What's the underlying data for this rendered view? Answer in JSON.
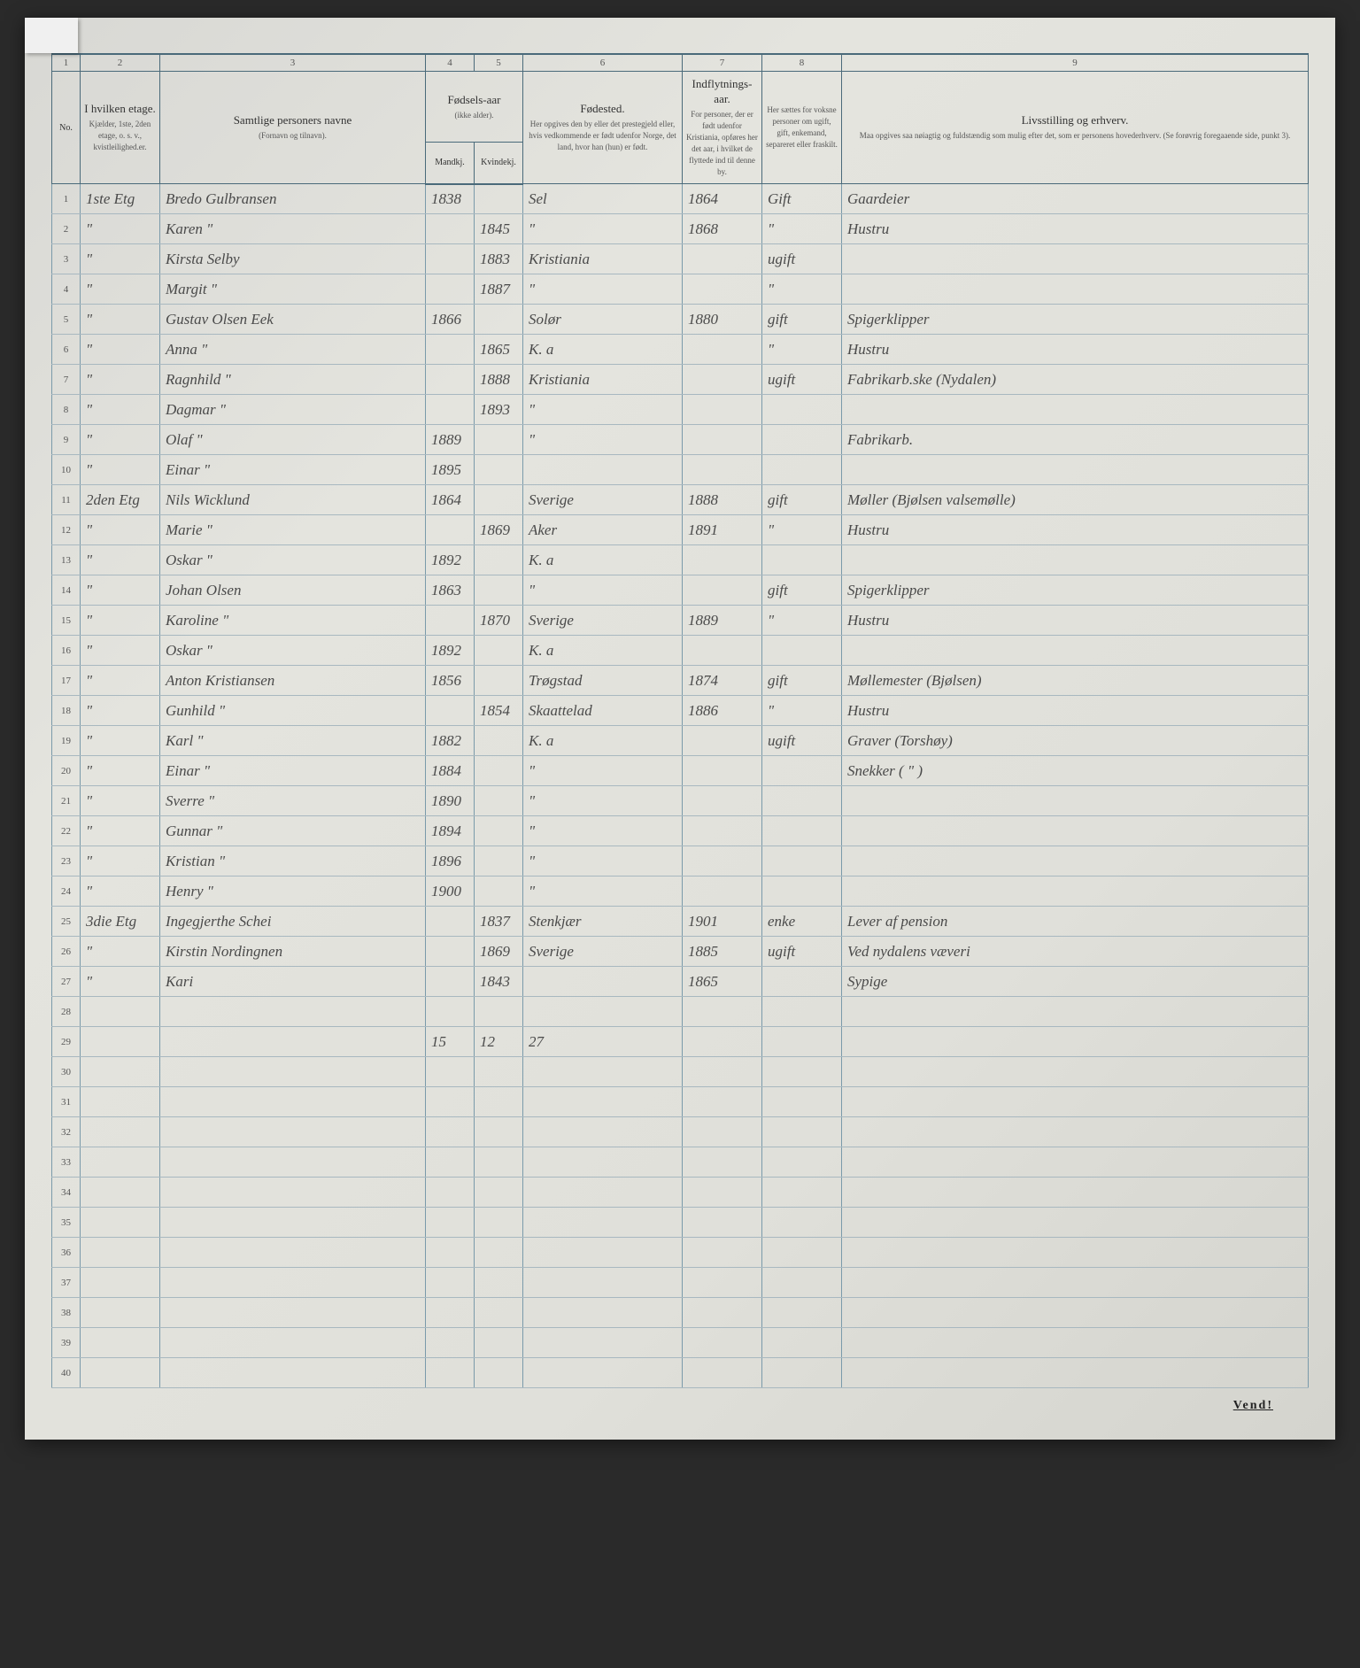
{
  "columns": {
    "numbers": [
      "1",
      "2",
      "3",
      "4",
      "5",
      "6",
      "7",
      "8",
      "9"
    ],
    "headers": {
      "no": "No.",
      "etage": {
        "main": "I hvilken etage.",
        "sub": "Kjælder, 1ste, 2den etage, o. s. v., kvistleilighed.er."
      },
      "name": {
        "main": "Samtlige personers navne",
        "sub": "(Fornavn og tilnavn)."
      },
      "birth": {
        "main": "Fødsels-aar",
        "sub": "(ikke alder).",
        "m": "Mandkj.",
        "f": "Kvindekj."
      },
      "place": {
        "main": "Fødested.",
        "sub": "Her opgives den by eller det prestegjeld eller, hvis vedkommende er født udenfor Norge, det land, hvor han (hun) er født."
      },
      "move": {
        "main": "Indflytnings-aar.",
        "sub": "For personer, der er født udenfor Kristiania, opføres her det aar, i hvilket de flyttede ind til denne by."
      },
      "status": {
        "main": "",
        "sub": "Her sættes for voksne personer om ugift, gift, enkemand, separeret eller fraskilt."
      },
      "occ": {
        "main": "Livsstilling og erhverv.",
        "sub": "Maa opgives saa nøiagtig og fuldstændig som mulig efter det, som er personens hovederhverv. (Se forøvrig foregaaende side, punkt 3)."
      }
    }
  },
  "rows": [
    {
      "n": "1",
      "et": "1ste Etg",
      "name": "Bredo Gulbransen",
      "ym": "1838",
      "yf": "",
      "place": "Sel",
      "move": "1864",
      "st": "Gift",
      "occ": "Gaardeier"
    },
    {
      "n": "2",
      "et": "\"",
      "name": "Karen        \"",
      "ym": "",
      "yf": "1845",
      "place": "\"",
      "move": "1868",
      "st": "\"",
      "occ": "Hustru"
    },
    {
      "n": "3",
      "et": "\"",
      "name": "Kirsta   Selby",
      "ym": "",
      "yf": "1883",
      "place": "Kristiania",
      "move": "",
      "st": "ugift",
      "occ": ""
    },
    {
      "n": "4",
      "et": "\"",
      "name": "Margit      \"",
      "ym": "",
      "yf": "1887",
      "place": "\"",
      "move": "",
      "st": "\"",
      "occ": ""
    },
    {
      "n": "5",
      "et": "\"",
      "name": "Gustav Olsen Eek",
      "ym": "1866",
      "yf": "",
      "place": "Solør",
      "move": "1880",
      "st": "gift",
      "occ": "Spigerklipper"
    },
    {
      "n": "6",
      "et": "\"",
      "name": "Anna         \"",
      "ym": "",
      "yf": "1865",
      "place": "K. a",
      "move": "",
      "st": "\"",
      "occ": "Hustru"
    },
    {
      "n": "7",
      "et": "\"",
      "name": "Ragnhild     \"",
      "ym": "",
      "yf": "1888",
      "place": "Kristiania",
      "move": "",
      "st": "ugift",
      "occ": "Fabrikarb.ske (Nydalen)"
    },
    {
      "n": "8",
      "et": "\"",
      "name": "Dagmar       \"",
      "ym": "",
      "yf": "1893",
      "place": "\"",
      "move": "",
      "st": "",
      "occ": ""
    },
    {
      "n": "9",
      "et": "\"",
      "name": "Olaf         \"",
      "ym": "1889",
      "yf": "",
      "place": "\"",
      "move": "",
      "st": "",
      "occ": "Fabrikarb."
    },
    {
      "n": "10",
      "et": "\"",
      "name": "Einar        \"",
      "ym": "1895",
      "yf": "",
      "place": "",
      "move": "",
      "st": "",
      "occ": ""
    },
    {
      "n": "11",
      "et": "2den Etg",
      "name": "Nils Wicklund",
      "ym": "1864",
      "yf": "",
      "place": "Sverige",
      "move": "1888",
      "st": "gift",
      "occ": "Møller (Bjølsen valsemølle)"
    },
    {
      "n": "12",
      "et": "\"",
      "name": "Marie        \"",
      "ym": "",
      "yf": "1869",
      "place": "Aker",
      "move": "1891",
      "st": "\"",
      "occ": "Hustru"
    },
    {
      "n": "13",
      "et": "\"",
      "name": "Oskar        \"",
      "ym": "1892",
      "yf": "",
      "place": "K. a",
      "move": "",
      "st": "",
      "occ": ""
    },
    {
      "n": "14",
      "et": "\"",
      "name": "Johan    Olsen",
      "ym": "1863",
      "yf": "",
      "place": "\"",
      "move": "",
      "st": "gift",
      "occ": "Spigerklipper"
    },
    {
      "n": "15",
      "et": "\"",
      "name": "Karoline     \"",
      "ym": "",
      "yf": "1870",
      "place": "Sverige",
      "move": "1889",
      "st": "\"",
      "occ": "Hustru"
    },
    {
      "n": "16",
      "et": "\"",
      "name": "Oskar        \"",
      "ym": "1892",
      "yf": "",
      "place": "K. a",
      "move": "",
      "st": "",
      "occ": ""
    },
    {
      "n": "17",
      "et": "\"",
      "name": "Anton   Kristiansen",
      "ym": "1856",
      "yf": "",
      "place": "Trøgstad",
      "move": "1874",
      "st": "gift",
      "occ": "Møllemester (Bjølsen)"
    },
    {
      "n": "18",
      "et": "\"",
      "name": "Gunhild      \"",
      "ym": "",
      "yf": "1854",
      "place": "Skaattelad",
      "move": "1886",
      "st": "\"",
      "occ": "Hustru"
    },
    {
      "n": "19",
      "et": "\"",
      "name": "Karl         \"",
      "ym": "1882",
      "yf": "",
      "place": "K. a",
      "move": "",
      "st": "ugift",
      "occ": "Graver (Torshøy)"
    },
    {
      "n": "20",
      "et": "\"",
      "name": "Einar        \"",
      "ym": "1884",
      "yf": "",
      "place": "\"",
      "move": "",
      "st": "",
      "occ": "Snekker (   \"   )"
    },
    {
      "n": "21",
      "et": "\"",
      "name": "Sverre       \"",
      "ym": "1890",
      "yf": "",
      "place": "\"",
      "move": "",
      "st": "",
      "occ": ""
    },
    {
      "n": "22",
      "et": "\"",
      "name": "Gunnar       \"",
      "ym": "1894",
      "yf": "",
      "place": "\"",
      "move": "",
      "st": "",
      "occ": ""
    },
    {
      "n": "23",
      "et": "\"",
      "name": "Kristian     \"",
      "ym": "1896",
      "yf": "",
      "place": "\"",
      "move": "",
      "st": "",
      "occ": ""
    },
    {
      "n": "24",
      "et": "\"",
      "name": "Henry        \"",
      "ym": "1900",
      "yf": "",
      "place": "\"",
      "move": "",
      "st": "",
      "occ": ""
    },
    {
      "n": "25",
      "et": "3die Etg",
      "name": "Ingegjerthe Schei",
      "ym": "",
      "yf": "1837",
      "place": "Stenkjær",
      "move": "1901",
      "st": "enke",
      "occ": "Lever af pension"
    },
    {
      "n": "26",
      "et": "\"",
      "name": "Kirstin Nordingnen",
      "ym": "",
      "yf": "1869",
      "place": "Sverige",
      "move": "1885",
      "st": "ugift",
      "occ": "Ved nydalens væveri"
    },
    {
      "n": "27",
      "et": "\"",
      "name": "Kari",
      "ym": "",
      "yf": "1843",
      "place": "",
      "move": "1865",
      "st": "",
      "occ": "Sypige"
    },
    {
      "n": "28",
      "et": "",
      "name": "",
      "ym": "",
      "yf": "",
      "place": "",
      "move": "",
      "st": "",
      "occ": ""
    },
    {
      "n": "29",
      "et": "",
      "name": "",
      "ym": "15",
      "yf": "12",
      "place": "27",
      "move": "",
      "st": "",
      "occ": ""
    },
    {
      "n": "30",
      "et": "",
      "name": "",
      "ym": "",
      "yf": "",
      "place": "",
      "move": "",
      "st": "",
      "occ": ""
    },
    {
      "n": "31",
      "et": "",
      "name": "",
      "ym": "",
      "yf": "",
      "place": "",
      "move": "",
      "st": "",
      "occ": ""
    },
    {
      "n": "32",
      "et": "",
      "name": "",
      "ym": "",
      "yf": "",
      "place": "",
      "move": "",
      "st": "",
      "occ": ""
    },
    {
      "n": "33",
      "et": "",
      "name": "",
      "ym": "",
      "yf": "",
      "place": "",
      "move": "",
      "st": "",
      "occ": ""
    },
    {
      "n": "34",
      "et": "",
      "name": "",
      "ym": "",
      "yf": "",
      "place": "",
      "move": "",
      "st": "",
      "occ": ""
    },
    {
      "n": "35",
      "et": "",
      "name": "",
      "ym": "",
      "yf": "",
      "place": "",
      "move": "",
      "st": "",
      "occ": ""
    },
    {
      "n": "36",
      "et": "",
      "name": "",
      "ym": "",
      "yf": "",
      "place": "",
      "move": "",
      "st": "",
      "occ": ""
    },
    {
      "n": "37",
      "et": "",
      "name": "",
      "ym": "",
      "yf": "",
      "place": "",
      "move": "",
      "st": "",
      "occ": ""
    },
    {
      "n": "38",
      "et": "",
      "name": "",
      "ym": "",
      "yf": "",
      "place": "",
      "move": "",
      "st": "",
      "occ": ""
    },
    {
      "n": "39",
      "et": "",
      "name": "",
      "ym": "",
      "yf": "",
      "place": "",
      "move": "",
      "st": "",
      "occ": ""
    },
    {
      "n": "40",
      "et": "",
      "name": "",
      "ym": "",
      "yf": "",
      "place": "",
      "move": "",
      "st": "",
      "occ": ""
    }
  ],
  "footer": "Vend!"
}
